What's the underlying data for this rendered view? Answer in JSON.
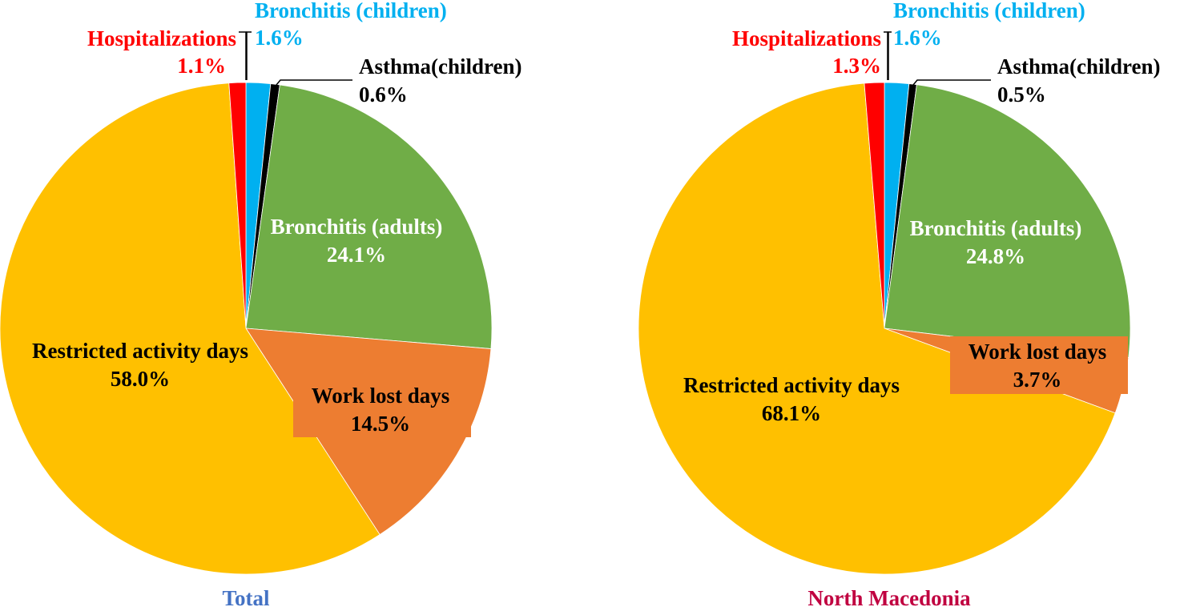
{
  "colors": {
    "hospitalizations": "#FF0000",
    "bronchitis_children": "#00B0F0",
    "asthma_children": "#000000",
    "bronchitis_adults": "#70AD47",
    "work_lost_days": "#ED7D31",
    "restricted_activity_days": "#FFC000",
    "total_title": "#4472C4",
    "macedonia_title": "#C00040"
  },
  "chart_data": [
    {
      "type": "pie",
      "title": "Total",
      "categories": [
        "Bronchitis (children)",
        "Asthma(children)",
        "Bronchitis (adults)",
        "Work lost days",
        "Restricted activity days",
        "Hospitalizations"
      ],
      "values": [
        1.6,
        0.6,
        24.1,
        14.5,
        58.0,
        1.1
      ],
      "value_labels": [
        "1.6%",
        "0.6%",
        "24.1%",
        "14.5%",
        "58.0%",
        "1.1%"
      ]
    },
    {
      "type": "pie",
      "title": "North Macedonia",
      "categories": [
        "Bronchitis (children)",
        "Asthma(children)",
        "Bronchitis (adults)",
        "Work lost days",
        "Restricted activity days",
        "Hospitalizations"
      ],
      "values": [
        1.6,
        0.5,
        24.8,
        3.7,
        68.1,
        1.3
      ],
      "value_labels": [
        "1.6%",
        "0.5%",
        "24.8%",
        "3.7%",
        "68.1%",
        "1.3%"
      ]
    }
  ]
}
